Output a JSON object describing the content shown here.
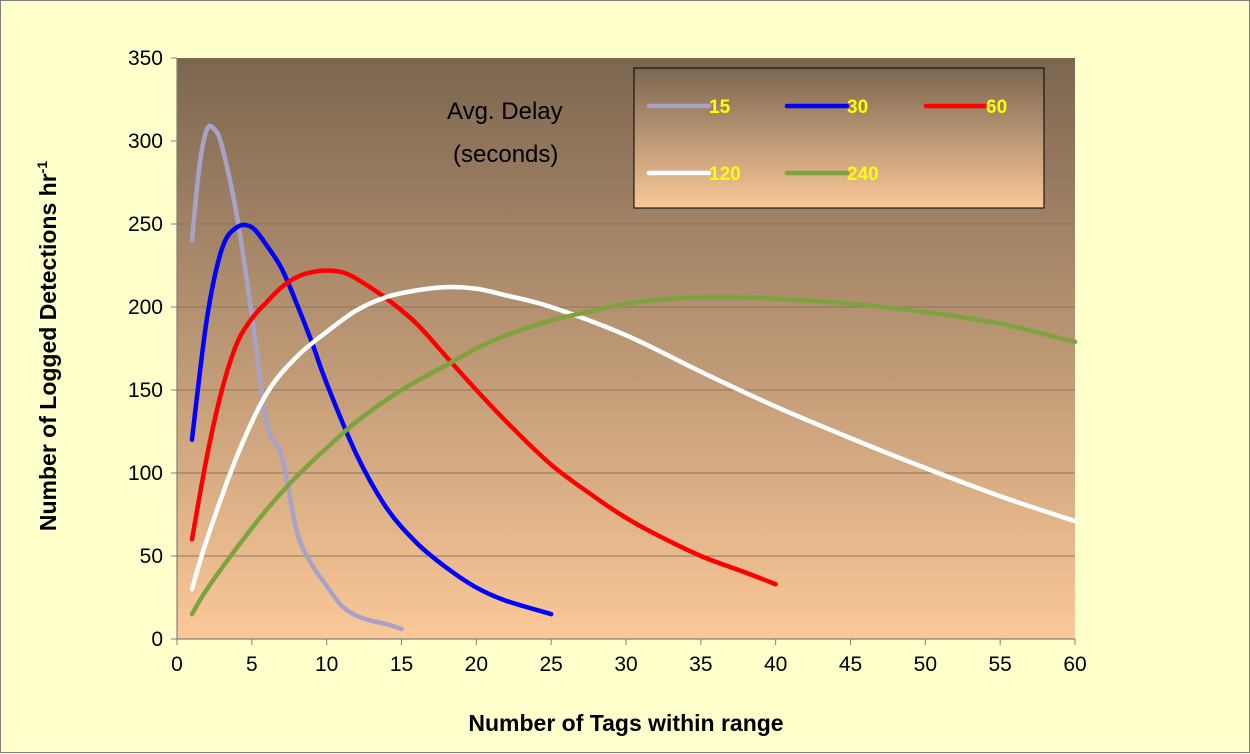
{
  "chart_data": {
    "type": "line",
    "title": "",
    "xlabel": "Number of Tags within range",
    "ylabel": "Number of  Logged Detections hr",
    "ylabel_superscript": "-1",
    "xlim": [
      0,
      60
    ],
    "ylim": [
      0,
      350
    ],
    "x_ticks": [
      "0",
      "5",
      "10",
      "15",
      "20",
      "25",
      "30",
      "35",
      "40",
      "45",
      "50",
      "55",
      "60"
    ],
    "y_ticks": [
      "0",
      "50",
      "100",
      "150",
      "200",
      "250",
      "300",
      "350"
    ],
    "grid": "horizontal",
    "legend": {
      "title_line1": "Avg. Delay",
      "title_line2": "(seconds)",
      "placement": "top-right",
      "label_color": "#FFFF00"
    },
    "background_gradient": [
      "#7C6650",
      "#FBC898"
    ],
    "series": [
      {
        "name": "15",
        "color": "#A8A2C8",
        "x": [
          1,
          1.5,
          2,
          2.5,
          3,
          4,
          5,
          6,
          7,
          8,
          9,
          10,
          11,
          12,
          13,
          14,
          15
        ],
        "y": [
          240,
          285,
          307,
          307,
          297,
          255,
          195,
          130,
          110,
          65,
          45,
          32,
          20,
          14,
          11,
          9,
          6
        ]
      },
      {
        "name": "30",
        "color": "#0000FF",
        "x": [
          1,
          2,
          3,
          4,
          5,
          6,
          7,
          8,
          9,
          10,
          12,
          14,
          16,
          18,
          20,
          22,
          25
        ],
        "y": [
          120,
          193,
          235,
          248,
          248,
          237,
          223,
          202,
          179,
          154,
          111,
          79,
          58,
          43,
          31,
          23,
          15
        ]
      },
      {
        "name": "60",
        "color": "#FF0000",
        "x": [
          1,
          2,
          3,
          4,
          5,
          6,
          7,
          8,
          9,
          10,
          11,
          12,
          14,
          16,
          18,
          20,
          22,
          25,
          28,
          30,
          32,
          35,
          38,
          40
        ],
        "y": [
          60,
          110,
          150,
          178,
          193,
          203,
          212,
          218,
          221,
          222,
          221,
          217,
          205,
          190,
          170,
          150,
          131,
          105,
          85,
          73,
          63,
          50,
          40,
          33
        ]
      },
      {
        "name": "120",
        "color": "#FFFFFF",
        "x": [
          1,
          2,
          4,
          6,
          8,
          10,
          12,
          14,
          16,
          18,
          20,
          22,
          25,
          30,
          35,
          40,
          45,
          50,
          55,
          60
        ],
        "y": [
          30,
          60,
          110,
          148,
          170,
          185,
          198,
          206,
          210,
          212,
          211,
          207,
          200,
          183,
          161,
          140,
          121,
          103,
          86,
          71
        ]
      },
      {
        "name": "240",
        "color": "#7EA33E",
        "x": [
          1,
          2,
          4,
          6,
          8,
          10,
          12,
          15,
          18,
          20,
          22,
          25,
          28,
          30,
          33,
          36,
          40,
          45,
          50,
          55,
          60
        ],
        "y": [
          15,
          30,
          55,
          78,
          98,
          115,
          131,
          150,
          165,
          175,
          183,
          192,
          198,
          202,
          205,
          206,
          205,
          202,
          197,
          190,
          179
        ]
      }
    ]
  }
}
